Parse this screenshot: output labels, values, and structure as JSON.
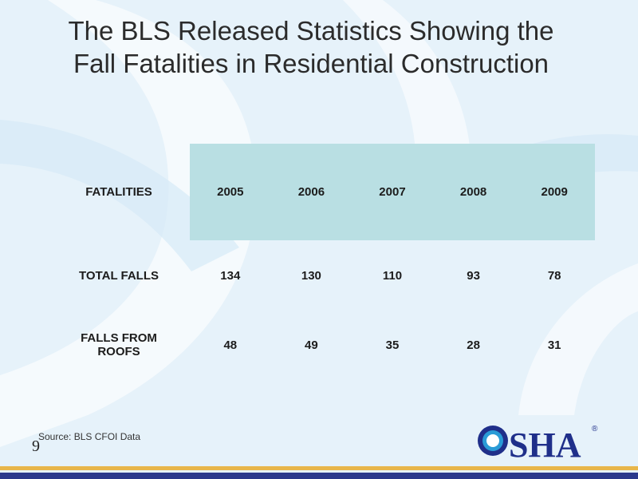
{
  "slide": {
    "title_line1": "The BLS Released Statistics Showing the",
    "title_line2": "Fall Fatalities in Residential Construction",
    "source": "Source: BLS CFOI Data",
    "page_number": "9"
  },
  "table": {
    "header": [
      "FATALITIES",
      "2005",
      "2006",
      "2007",
      "2008",
      "2009"
    ],
    "rows": [
      [
        "TOTAL FALLS",
        "134",
        "130",
        "110",
        "93",
        "78"
      ],
      [
        "FALLS FROM ROOFS",
        "48",
        "49",
        "35",
        "28",
        "31"
      ]
    ]
  },
  "logo": {
    "text": "OSHA",
    "registered": "®"
  },
  "colors": {
    "header_shade": "#b9dfe3",
    "gold_bar": "#e8b64a",
    "blue_bar": "#2c3a8c"
  }
}
